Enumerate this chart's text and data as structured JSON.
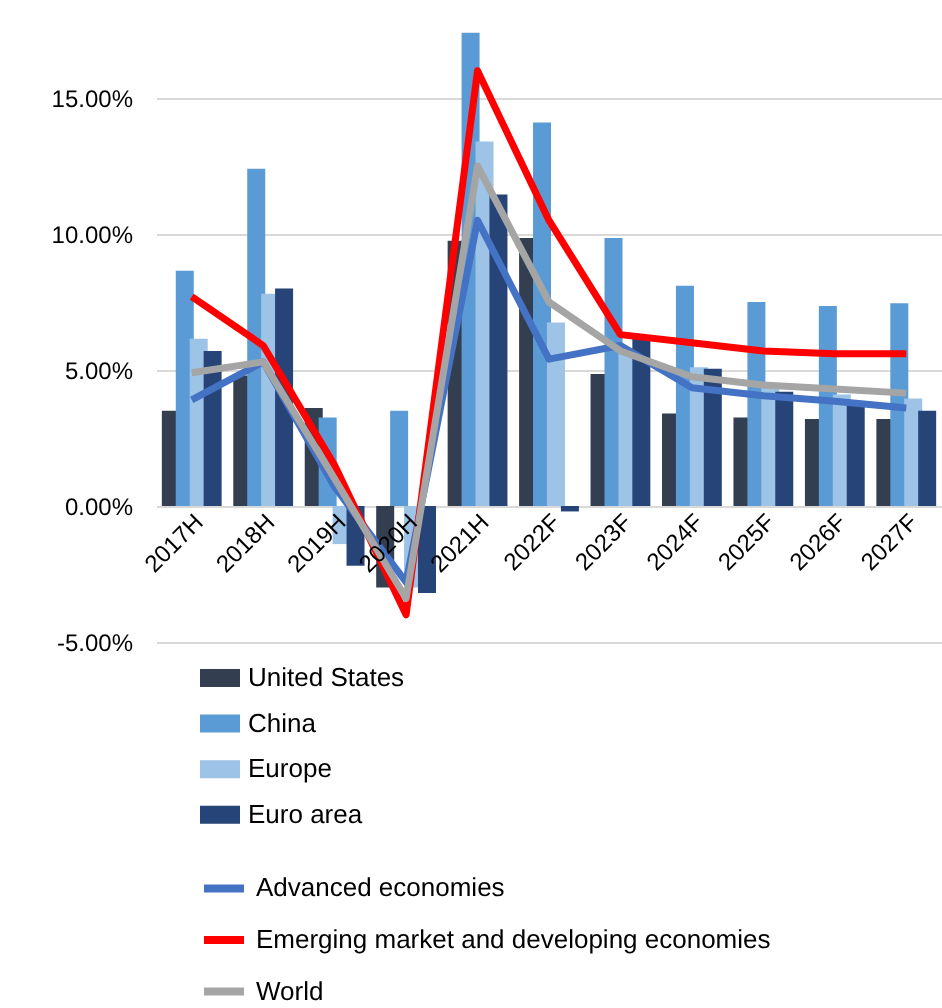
{
  "chart_data": {
    "type": "bar",
    "categories": [
      "2017H",
      "2018H",
      "2019H",
      "2020H",
      "2021H",
      "2022F",
      "2023F",
      "2024F",
      "2025F",
      "2026F",
      "2027F"
    ],
    "series": [
      {
        "name": "United States",
        "color": "#333f50",
        "values": [
          3.5,
          4.8,
          3.6,
          -3.0,
          9.75,
          9.85,
          4.85,
          3.4,
          3.25,
          3.2,
          3.2
        ]
      },
      {
        "name": "China",
        "color": "#5b9bd5",
        "values": [
          8.65,
          12.4,
          3.25,
          3.5,
          17.4,
          14.1,
          9.85,
          8.1,
          7.5,
          7.35,
          7.45
        ]
      },
      {
        "name": "Europe",
        "color": "#9dc3e6",
        "values": [
          6.15,
          7.8,
          -1.4,
          -3.0,
          13.4,
          6.75,
          5.8,
          5.1,
          4.5,
          4.1,
          3.95
        ]
      },
      {
        "name": "Euro area",
        "color": "#264478",
        "values": [
          5.7,
          8.0,
          -2.2,
          -3.2,
          11.45,
          -0.2,
          6.15,
          5.05,
          4.2,
          3.7,
          3.5
        ]
      },
      {
        "name": "Advanced economies",
        "type": "line",
        "color": "#4472c4",
        "values": [
          3.9,
          5.3,
          0.7,
          -2.8,
          10.5,
          5.4,
          5.9,
          4.35,
          4.05,
          3.85,
          3.6
        ]
      },
      {
        "name": "Emerging market and developing economies",
        "type": "line",
        "color": "#ff0000",
        "values": [
          7.7,
          5.9,
          1.5,
          -4.0,
          16.0,
          10.5,
          6.3,
          6.0,
          5.7,
          5.6,
          5.6
        ]
      },
      {
        "name": "World",
        "type": "line",
        "color": "#a5a5a5",
        "values": [
          4.9,
          5.3,
          1.0,
          -3.4,
          12.5,
          7.5,
          5.7,
          4.75,
          4.45,
          4.3,
          4.15
        ]
      }
    ],
    "ylim": [
      -5,
      17.5
    ],
    "yticks": [
      {
        "value": -5,
        "label": "-5.00%"
      },
      {
        "value": 0,
        "label": "0.00%"
      },
      {
        "value": 5,
        "label": "5.00%"
      },
      {
        "value": 10,
        "label": "10.00%"
      },
      {
        "value": 15,
        "label": "15.00%"
      }
    ],
    "grid": "y",
    "legend": "bottom"
  }
}
